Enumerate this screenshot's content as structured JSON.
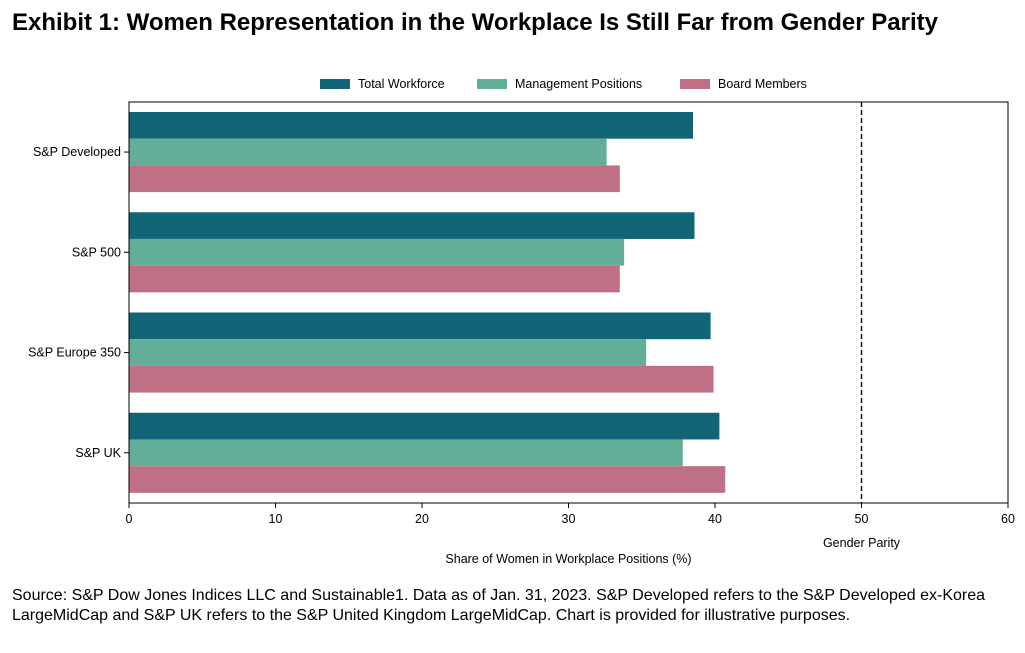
{
  "title": "Exhibit 1: Women Representation in the Workplace Is Still Far from Gender Parity",
  "source": "Source: S&P Dow Jones Indices LLC and Sustainable1. Data as of Jan. 31, 2023. S&P Developed refers to the S&P Developed ex-Korea LargeMidCap and S&P UK refers to the S&P United Kingdom LargeMidCap. Chart is provided for illustrative purposes.",
  "chart_data": {
    "type": "bar",
    "orientation": "horizontal",
    "categories": [
      "S&P Developed",
      "S&P 500",
      "S&P Europe 350",
      "S&P UK"
    ],
    "series": [
      {
        "name": "Total Workforce",
        "color": "#126577",
        "values": [
          38.5,
          38.6,
          39.7,
          40.3
        ]
      },
      {
        "name": "Management Positions",
        "color": "#62AE98",
        "values": [
          32.6,
          33.8,
          35.3,
          37.8
        ]
      },
      {
        "name": "Board Members",
        "color": "#BF7085",
        "values": [
          33.5,
          33.5,
          39.9,
          40.7
        ]
      }
    ],
    "xlabel": "Share of Women in Workplace Positions (%)",
    "xlim": [
      0,
      60
    ],
    "xticks": [
      0,
      10,
      20,
      30,
      40,
      50,
      60
    ],
    "reference_line": {
      "value": 50,
      "label": "Gender Parity",
      "style": "dashed"
    },
    "legend_position": "top",
    "grid": false
  }
}
